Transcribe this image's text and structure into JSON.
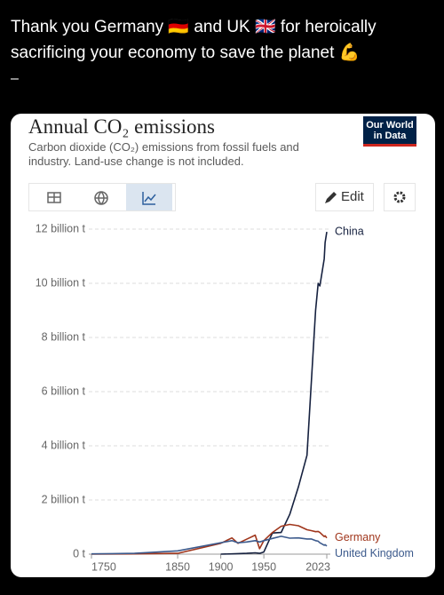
{
  "post": {
    "text": "Thank you Germany 🇩🇪 and UK 🇬🇧 for heroically sacrificing your economy to save the planet 💪",
    "separator": "–"
  },
  "ui": {
    "logo": "Our World in Data",
    "edit": "Edit"
  },
  "chart_data": {
    "type": "line",
    "title": "Annual CO₂ emissions",
    "subtitle": "Carbon dioxide (CO₂) emissions from fossil fuels and industry. Land-use change is not included.",
    "x": [
      1750,
      1800,
      1850,
      1900,
      1913,
      1920,
      1930,
      1940,
      1945,
      1950,
      1960,
      1970,
      1980,
      1990,
      2000,
      2005,
      2010,
      2013,
      2015,
      2020,
      2021,
      2023
    ],
    "series": [
      {
        "name": "China",
        "color": "#16213f",
        "values": [
          null,
          null,
          null,
          0.0,
          0.01,
          0.02,
          0.03,
          0.05,
          0.03,
          0.08,
          0.78,
          0.8,
          1.47,
          2.48,
          3.65,
          6.3,
          9.0,
          10.0,
          9.9,
          10.9,
          11.5,
          11.9
        ]
      },
      {
        "name": "Germany",
        "color": "#a0361c",
        "values": [
          0.0,
          0.01,
          0.03,
          0.4,
          0.6,
          0.4,
          0.55,
          0.7,
          0.2,
          0.5,
          0.8,
          1.03,
          1.1,
          1.05,
          0.9,
          0.87,
          0.83,
          0.84,
          0.8,
          0.65,
          0.68,
          0.6
        ]
      },
      {
        "name": "United Kingdom",
        "color": "#3c5a8c",
        "values": [
          0.01,
          0.03,
          0.12,
          0.42,
          0.5,
          0.42,
          0.45,
          0.5,
          0.45,
          0.5,
          0.58,
          0.66,
          0.59,
          0.6,
          0.56,
          0.56,
          0.5,
          0.48,
          0.42,
          0.33,
          0.35,
          0.3
        ]
      }
    ],
    "xlim": [
      1750,
      2023
    ],
    "xticks": [
      1750,
      1850,
      1900,
      1950,
      2023
    ],
    "ylim": [
      0,
      12
    ],
    "yticks": [
      {
        "value": 0,
        "label": "0 t"
      },
      {
        "value": 2,
        "label": "2 billion t"
      },
      {
        "value": 4,
        "label": "4 billion t"
      },
      {
        "value": 6,
        "label": "6 billion t"
      },
      {
        "value": 8,
        "label": "8 billion t"
      },
      {
        "value": 10,
        "label": "10 billion t"
      },
      {
        "value": 12,
        "label": "12 billion t"
      }
    ],
    "grid": true
  }
}
